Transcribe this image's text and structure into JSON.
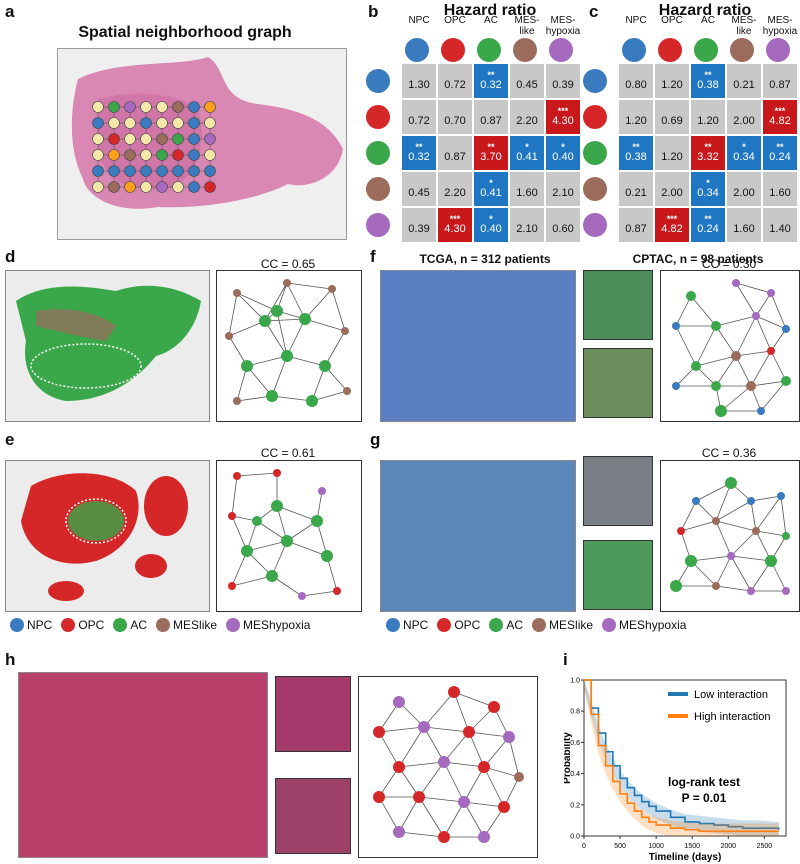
{
  "colors": {
    "NPC": "#3a7bbf",
    "OPC": "#d62728",
    "AC": "#3aa84a",
    "MES": "#9b6b5c",
    "MESh": "#a569bd",
    "blue": "#1f77c4",
    "red": "#c8181c",
    "grey": "#c8c8c8"
  },
  "labels": {
    "a": "a",
    "b": "b",
    "c": "c",
    "d": "d",
    "e": "e",
    "f": "f",
    "g": "g",
    "h": "h",
    "i": "i"
  },
  "a": {
    "title": "Spatial neighborhood graph"
  },
  "b": {
    "title": "Hazard ratio",
    "caption": "TCGA, n = 312 patients",
    "cols": [
      "NPC",
      "OPC",
      "AC",
      "MES-\nlike",
      "MES-\nhypoxia"
    ],
    "values": [
      [
        "1.30",
        "0.72",
        "0.32",
        "0.45",
        "0.39"
      ],
      [
        "0.72",
        "0.70",
        "0.87",
        "2.20",
        "4.30"
      ],
      [
        "0.32",
        "0.87",
        "3.70",
        "0.41",
        "0.40"
      ],
      [
        "0.45",
        "2.20",
        "0.41",
        "1.60",
        "2.10"
      ],
      [
        "0.39",
        "4.30",
        "0.40",
        "2.10",
        "0.60"
      ]
    ],
    "stars": [
      [
        "",
        "",
        "**",
        "",
        ""
      ],
      [
        "",
        "",
        "",
        "",
        "***"
      ],
      [
        "**",
        "",
        "**",
        "*",
        "*"
      ],
      [
        "",
        "",
        "*",
        "",
        ""
      ],
      [
        "",
        "***",
        "*",
        "",
        ""
      ]
    ],
    "kind": [
      [
        "g",
        "g",
        "b",
        "g",
        "g"
      ],
      [
        "g",
        "g",
        "g",
        "g",
        "r"
      ],
      [
        "b",
        "g",
        "r",
        "b",
        "b"
      ],
      [
        "g",
        "g",
        "b",
        "g",
        "g"
      ],
      [
        "g",
        "r",
        "b",
        "g",
        "g"
      ]
    ]
  },
  "c": {
    "title": "Hazard ratio",
    "caption": "CPTAC, n = 98 patients",
    "cols": [
      "NPC",
      "OPC",
      "AC",
      "MES-\nlike",
      "MES-\nhypoxia"
    ],
    "values": [
      [
        "0.80",
        "1.20",
        "0.38",
        "0.21",
        "0.87"
      ],
      [
        "1.20",
        "0.69",
        "1.20",
        "2.00",
        "4.82"
      ],
      [
        "0.38",
        "1.20",
        "3.32",
        "0.34",
        "0.24"
      ],
      [
        "0.21",
        "2.00",
        "0.34",
        "2.00",
        "1.60"
      ],
      [
        "0.87",
        "4.82",
        "0.24",
        "1.60",
        "1.40"
      ]
    ],
    "stars": [
      [
        "",
        "",
        "**",
        "",
        ""
      ],
      [
        "",
        "",
        "",
        "",
        "***"
      ],
      [
        "**",
        "",
        "**",
        "*",
        "**"
      ],
      [
        "",
        "",
        "*",
        "",
        ""
      ],
      [
        "",
        "***",
        "**",
        "",
        ""
      ]
    ],
    "kind": [
      [
        "g",
        "g",
        "b",
        "g",
        "g"
      ],
      [
        "g",
        "g",
        "g",
        "g",
        "r"
      ],
      [
        "b",
        "g",
        "r",
        "b",
        "b"
      ],
      [
        "g",
        "g",
        "b",
        "g",
        "g"
      ],
      [
        "g",
        "r",
        "b",
        "g",
        "g"
      ]
    ]
  },
  "d": {
    "cc": "CC = 0.65"
  },
  "e": {
    "cc": "CC = 0.61"
  },
  "f": {
    "cc": "CC = 0.30"
  },
  "g": {
    "cc": "CC = 0.36"
  },
  "legend": [
    "NPC",
    "OPC",
    "AC",
    "MESlike",
    "MEShypoxia"
  ],
  "chart_data": {
    "type": "line",
    "xlabel": "Timeline (days)",
    "ylabel": "Probability",
    "xlim": [
      0,
      2800
    ],
    "ylim": [
      0,
      1.0
    ],
    "xticks": [
      "0",
      "500",
      "1000",
      "1500",
      "2000",
      "2500"
    ],
    "yticks": [
      "0.0",
      "0.2",
      "0.4",
      "0.6",
      "0.8",
      "1.0"
    ],
    "annotation_line1": "log-rank test",
    "annotation_line2": "P = 0.01",
    "legend_placement": "top-right",
    "series": [
      {
        "name": "Low interaction",
        "color": "#1f77b4",
        "x": [
          0,
          100,
          200,
          300,
          400,
          500,
          600,
          700,
          800,
          900,
          1000,
          1200,
          1400,
          1600,
          1800,
          2000,
          2200,
          2400,
          2700
        ],
        "y": [
          1.0,
          0.82,
          0.66,
          0.54,
          0.45,
          0.37,
          0.31,
          0.26,
          0.22,
          0.19,
          0.16,
          0.12,
          0.09,
          0.08,
          0.07,
          0.06,
          0.05,
          0.05,
          0.04
        ]
      },
      {
        "name": "High interaction",
        "color": "#ff7f0e",
        "x": [
          0,
          100,
          200,
          300,
          400,
          500,
          600,
          700,
          800,
          900,
          1000,
          1200,
          1400,
          1600,
          1800,
          2000,
          2200,
          2400,
          2700
        ],
        "y": [
          1.0,
          0.78,
          0.58,
          0.45,
          0.35,
          0.27,
          0.21,
          0.16,
          0.12,
          0.09,
          0.07,
          0.05,
          0.04,
          0.03,
          0.03,
          0.03,
          0.03,
          0.03,
          0.03
        ]
      }
    ]
  }
}
